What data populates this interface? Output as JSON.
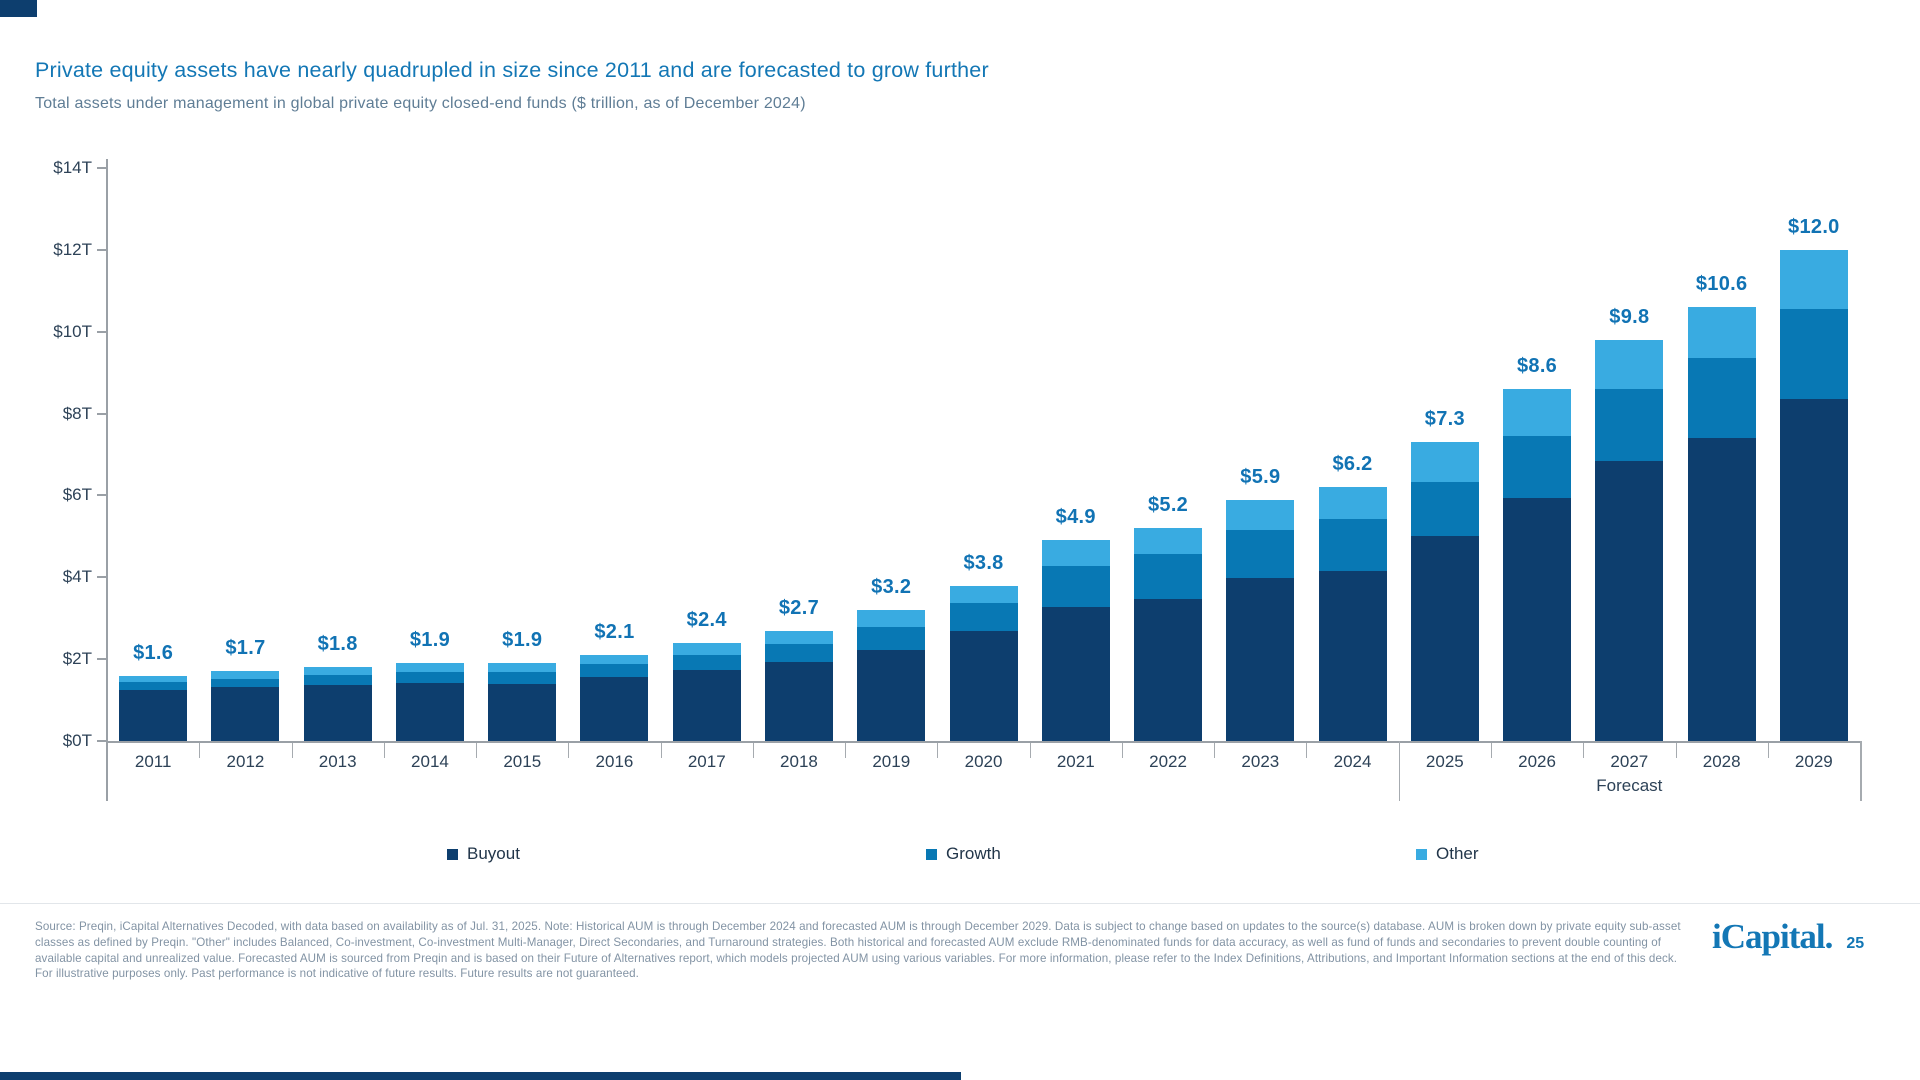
{
  "header": {
    "title": "Private equity assets have nearly quadrupled in size since 2011 and are forecasted to grow further",
    "subtitle": "Total assets under management in global private equity closed-end funds ($ trillion, as of December 2024)"
  },
  "chart_data": {
    "type": "bar",
    "stacked": true,
    "title": "Private equity assets have nearly quadrupled in size since 2011 and are forecasted to grow further",
    "subtitle": "Total assets under management in global private equity closed-end funds ($ trillion, as of December 2024)",
    "categories": [
      "2011",
      "2012",
      "2013",
      "2014",
      "2015",
      "2016",
      "2017",
      "2018",
      "2019",
      "2020",
      "2021",
      "2022",
      "2023",
      "2024",
      "2025",
      "2026",
      "2027",
      "2028",
      "2029"
    ],
    "series": [
      {
        "name": "Buyout",
        "color": "#0d3e6e",
        "values": [
          1.25,
          1.31,
          1.37,
          1.42,
          1.4,
          1.55,
          1.73,
          1.92,
          2.22,
          2.68,
          3.27,
          3.47,
          3.99,
          4.14,
          5.0,
          5.93,
          6.85,
          7.4,
          8.35
        ]
      },
      {
        "name": "Growth",
        "color": "#0878b4",
        "values": [
          0.19,
          0.21,
          0.23,
          0.26,
          0.28,
          0.32,
          0.38,
          0.45,
          0.56,
          0.7,
          1.01,
          1.09,
          1.17,
          1.27,
          1.32,
          1.52,
          1.75,
          1.95,
          2.2
        ]
      },
      {
        "name": "Other",
        "color": "#39abe1",
        "values": [
          0.16,
          0.18,
          0.2,
          0.22,
          0.22,
          0.23,
          0.29,
          0.33,
          0.42,
          0.42,
          0.62,
          0.64,
          0.74,
          0.79,
          0.98,
          1.15,
          1.2,
          1.25,
          1.45
        ]
      }
    ],
    "totals": [
      1.6,
      1.7,
      1.8,
      1.9,
      1.9,
      2.1,
      2.4,
      2.7,
      3.2,
      3.8,
      4.9,
      5.2,
      5.9,
      6.2,
      7.3,
      8.6,
      9.8,
      10.6,
      12.0
    ],
    "totals_labels": [
      "$1.6",
      "$1.7",
      "$1.8",
      "$1.9",
      "$1.9",
      "$2.1",
      "$2.4",
      "$2.7",
      "$3.2",
      "$3.8",
      "$4.9",
      "$5.2",
      "$5.9",
      "$6.2",
      "$7.3",
      "$8.6",
      "$9.8",
      "$10.6",
      "$12.0"
    ],
    "xlabel": "",
    "ylabel": "",
    "ylim": [
      0,
      14
    ],
    "tick_step": 2,
    "y_ticks": [
      "$0T",
      "$2T",
      "$4T",
      "$6T",
      "$8T",
      "$10T",
      "$12T",
      "$14T"
    ],
    "grid": false,
    "legend_position": "bottom",
    "forecast": {
      "label": "Forecast",
      "start_category": "2025"
    },
    "value_label_color": "#1173b4"
  },
  "legend": {
    "items": [
      {
        "label": "Buyout",
        "color": "#0d3e6e"
      },
      {
        "label": "Growth",
        "color": "#0878b4"
      },
      {
        "label": "Other",
        "color": "#39abe1"
      }
    ]
  },
  "footer": {
    "disclaimer": "Source: Preqin, iCapital Alternatives Decoded, with data based on availability as of Jul. 31, 2025. Note: Historical AUM is through December 2024 and forecasted AUM is through December 2029. Data is subject to change based on updates to the source(s) database. AUM is broken down by private equity sub-asset classes as defined by Preqin. \"Other\" includes Balanced, Co-investment, Co-investment Multi-Manager, Direct Secondaries, and Turnaround strategies. Both historical and forecasted AUM exclude RMB-denominated funds for data accuracy, as well as fund of funds and secondaries to prevent double counting of available capital and unrealized value. Forecasted AUM is sourced from Preqin and is based on their Future of Alternatives report, which models projected AUM using various variables. For more information, please refer to the Index Definitions, Attributions, and Important Information sections at the end of this deck. For illustrative purposes only. Past performance is not indicative of future results. Future results are not guaranteed.",
    "logo_text": "iCapital.",
    "page_number": "25"
  },
  "colors": {
    "title_blue": "#1377b5",
    "subtitle_gray": "#5f7d95",
    "axis_gray": "#9aa0a6",
    "axis_text": "#2d4257",
    "accent_navy": "#0d3e6e"
  }
}
